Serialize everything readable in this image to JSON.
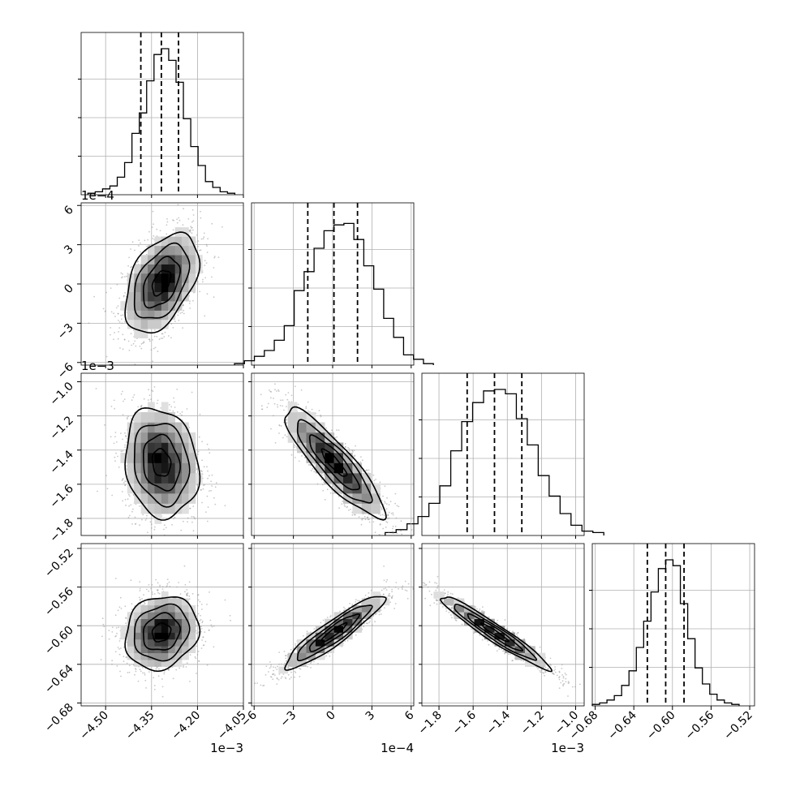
{
  "chart_data": {
    "type": "corner",
    "params": [
      {
        "range": [
          -4.58,
          -4.05
        ],
        "ticks": [
          -4.5,
          -4.35,
          -4.2,
          -4.05
        ],
        "tick_labels": [
          "−4.50",
          "−4.35",
          "−4.20",
          "−4.05"
        ],
        "offset_label": "1e−3",
        "hist_bins": [
          0.01,
          0.02,
          0.04,
          0.06,
          0.12,
          0.22,
          0.42,
          0.56,
          0.78,
          0.96,
          1.0,
          0.92,
          0.77,
          0.52,
          0.33,
          0.2,
          0.09,
          0.05,
          0.02,
          0.01
        ],
        "quantiles": [
          -4.385,
          -4.318,
          -4.262
        ],
        "std": 0.06
      },
      {
        "range": [
          -6.2,
          6.2
        ],
        "ticks": [
          -6,
          -3,
          0,
          3,
          6
        ],
        "tick_labels": [
          "−6",
          "−3",
          "0",
          "3",
          "6"
        ],
        "offset_label": "1e−4",
        "hist_bins": [
          0.01,
          0.03,
          0.06,
          0.1,
          0.17,
          0.27,
          0.51,
          0.64,
          0.8,
          0.92,
          0.96,
          0.97,
          0.86,
          0.68,
          0.52,
          0.32,
          0.19,
          0.07,
          0.04,
          0.01
        ],
        "quantiles": [
          -1.9,
          0.1,
          1.9
        ],
        "std": 1.9
      },
      {
        "range": [
          -1.9,
          -0.95
        ],
        "ticks": [
          -1.8,
          -1.6,
          -1.4,
          -1.2,
          -1.0
        ],
        "tick_labels": [
          "−1.8",
          "−1.6",
          "−1.4",
          "−1.2",
          "−1.0"
        ],
        "offset_label": "1e−3",
        "hist_bins": [
          0.02,
          0.04,
          0.08,
          0.13,
          0.22,
          0.34,
          0.58,
          0.78,
          0.91,
          0.99,
          1.0,
          0.97,
          0.8,
          0.62,
          0.41,
          0.27,
          0.15,
          0.07,
          0.03,
          0.02
        ],
        "quantiles": [
          -1.635,
          -1.475,
          -1.315
        ],
        "std": 0.16
      },
      {
        "range": [
          -0.683,
          -0.515
        ],
        "ticks": [
          -0.68,
          -0.64,
          -0.6,
          -0.56,
          -0.52
        ],
        "tick_labels": [
          "−0.68",
          "−0.64",
          "−0.60",
          "−0.56",
          "−0.52"
        ],
        "offset_label": "",
        "hist_bins": [
          0.01,
          0.02,
          0.04,
          0.07,
          0.14,
          0.24,
          0.4,
          0.58,
          0.78,
          0.94,
          1.0,
          0.96,
          0.7,
          0.46,
          0.26,
          0.15,
          0.08,
          0.04,
          0.02,
          0.01
        ],
        "quantiles": [
          -0.626,
          -0.607,
          -0.588
        ],
        "std": 0.019
      }
    ],
    "pairs": [
      {
        "row": 1,
        "col": 0,
        "center": [
          -4.318,
          0.1
        ],
        "corr": 0.45
      },
      {
        "row": 2,
        "col": 0,
        "center": [
          -4.318,
          -1.475
        ],
        "corr": -0.15
      },
      {
        "row": 2,
        "col": 1,
        "center": [
          0.1,
          -1.475
        ],
        "corr": -0.88
      },
      {
        "row": 3,
        "col": 0,
        "center": [
          -4.318,
          -0.607
        ],
        "corr": 0.15
      },
      {
        "row": 3,
        "col": 1,
        "center": [
          0.1,
          -0.607
        ],
        "corr": 0.92
      },
      {
        "row": 3,
        "col": 2,
        "center": [
          -1.475,
          -0.607
        ],
        "corr": -0.96
      }
    ],
    "row_offset_labels": [
      "",
      "1e−4",
      "1e−3",
      ""
    ],
    "grid": true,
    "colors": {
      "line": "#000000",
      "grid": "#b0b0b0",
      "points": "#9a9a9a"
    }
  }
}
